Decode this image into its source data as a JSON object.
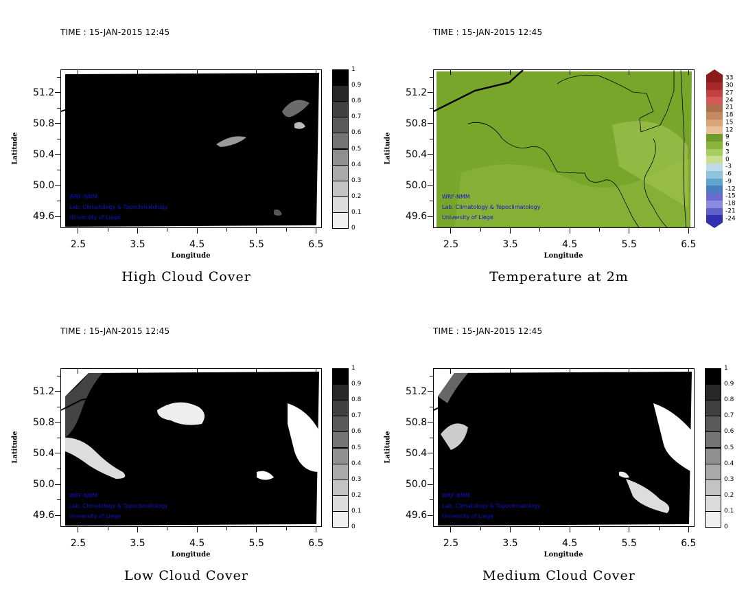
{
  "figure": {
    "credits": [
      "WRF-NMM",
      "Lab. Climatology & Topoclimatology",
      "University of Liege"
    ]
  },
  "colors": {
    "credit_text": "#1010d0",
    "cloud_fill": "#000000",
    "temperature_fill": "#7aa62c"
  },
  "chart_data": [
    {
      "type": "heatmap",
      "title": "High Cloud Cover",
      "time_label": "TIME : 15-JAN-2015 12:45",
      "xlabel": "Longitude",
      "ylabel": "Latitude",
      "xticks": [
        "2.5",
        "3.5",
        "4.5",
        "5.5",
        "6.5"
      ],
      "yticks": [
        "51.2",
        "50.8",
        "50.4",
        "50.0",
        "49.6"
      ],
      "xlim": [
        2.2,
        6.6
      ],
      "ylim": [
        49.45,
        51.5
      ],
      "colorbar": {
        "levels": [
          "0",
          "0.1",
          "0.2",
          "0.3",
          "0.4",
          "0.5",
          "0.6",
          "0.7",
          "0.8",
          "0.9",
          "1"
        ],
        "colors": [
          "#ffffff",
          "#f0f0f0",
          "#dcdcdc",
          "#c4c4c4",
          "#aaaaaa",
          "#8f8f8f",
          "#747474",
          "#5a5a5a",
          "#404040",
          "#282828",
          "#000000"
        ]
      },
      "note_fill": "mostly 1.0 (overcast)"
    },
    {
      "type": "heatmap",
      "title": "Temperature at 2m",
      "time_label": "TIME : 15-JAN-2015 12:45",
      "xlabel": "Longitude",
      "ylabel": "Latitude",
      "xticks": [
        "2.5",
        "3.5",
        "4.5",
        "5.5",
        "6.5"
      ],
      "yticks": [
        "51.2",
        "50.8",
        "50.4",
        "50.0",
        "49.6"
      ],
      "xlim": [
        2.2,
        6.6
      ],
      "ylim": [
        49.45,
        51.5
      ],
      "colorbar": {
        "levels": [
          "33",
          "30",
          "27",
          "24",
          "21",
          "18",
          "15",
          "12",
          "9",
          "6",
          "3",
          "0",
          "-3",
          "-6",
          "-9",
          "-12",
          "-15",
          "-18",
          "-21",
          "-24"
        ]
      },
      "note_fill": "about 3 to 9"
    },
    {
      "type": "heatmap",
      "title": "Low Cloud Cover",
      "time_label": "TIME : 15-JAN-2015 12:45",
      "xlabel": "Longitude",
      "ylabel": "Latitude",
      "xticks": [
        "2.5",
        "3.5",
        "4.5",
        "5.5",
        "6.5"
      ],
      "yticks": [
        "51.2",
        "50.8",
        "50.4",
        "50.0",
        "49.6"
      ],
      "xlim": [
        2.2,
        6.6
      ],
      "ylim": [
        49.45,
        51.5
      ],
      "colorbar": {
        "levels": [
          "0",
          "0.1",
          "0.2",
          "0.3",
          "0.4",
          "0.5",
          "0.6",
          "0.7",
          "0.8",
          "0.9",
          "1"
        ]
      }
    },
    {
      "type": "heatmap",
      "title": "Medium Cloud Cover",
      "time_label": "TIME : 15-JAN-2015 12:45",
      "xlabel": "Longitude",
      "ylabel": "Latitude",
      "xticks": [
        "2.5",
        "3.5",
        "4.5",
        "5.5",
        "6.5"
      ],
      "yticks": [
        "51.2",
        "50.8",
        "50.4",
        "50.0",
        "49.6"
      ],
      "xlim": [
        2.2,
        6.6
      ],
      "ylim": [
        49.45,
        51.5
      ],
      "colorbar": {
        "levels": [
          "0",
          "0.1",
          "0.2",
          "0.3",
          "0.4",
          "0.5",
          "0.6",
          "0.7",
          "0.8",
          "0.9",
          "1"
        ]
      }
    }
  ]
}
